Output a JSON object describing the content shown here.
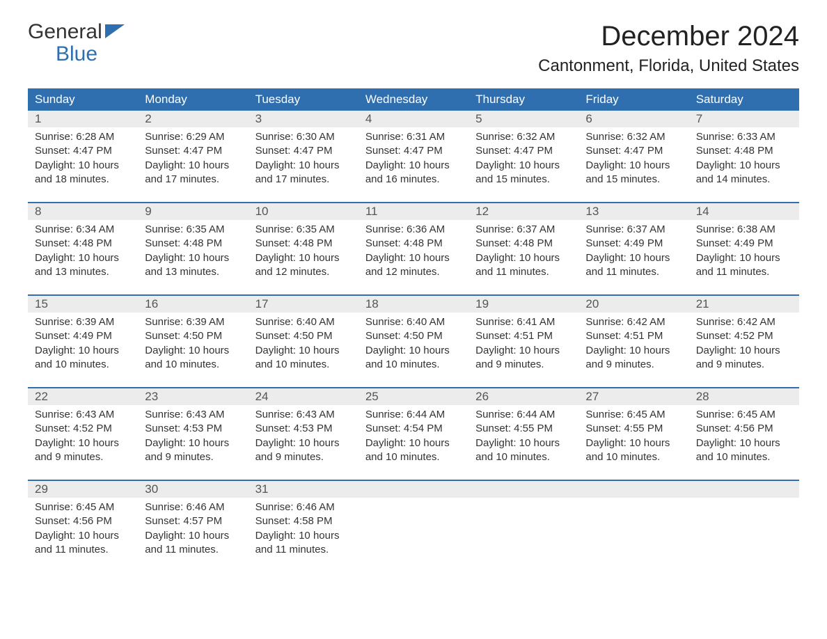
{
  "logo": {
    "line1": "General",
    "line2": "Blue"
  },
  "header": {
    "month_title": "December 2024",
    "location": "Cantonment, Florida, United States"
  },
  "colors": {
    "header_bg": "#2f6fb0",
    "header_text": "#ffffff",
    "daynum_bg": "#ececec",
    "daynum_text": "#555555",
    "body_text": "#333333",
    "week_border": "#2f6fb0",
    "logo_blue": "#2f6fb0",
    "page_bg": "#ffffff"
  },
  "typography": {
    "month_title_fontsize": 40,
    "location_fontsize": 24,
    "dayhead_fontsize": 17,
    "body_fontsize": 15
  },
  "day_names": [
    "Sunday",
    "Monday",
    "Tuesday",
    "Wednesday",
    "Thursday",
    "Friday",
    "Saturday"
  ],
  "weeks": [
    [
      {
        "num": "1",
        "sunrise": "Sunrise: 6:28 AM",
        "sunset": "Sunset: 4:47 PM",
        "dl1": "Daylight: 10 hours",
        "dl2": "and 18 minutes."
      },
      {
        "num": "2",
        "sunrise": "Sunrise: 6:29 AM",
        "sunset": "Sunset: 4:47 PM",
        "dl1": "Daylight: 10 hours",
        "dl2": "and 17 minutes."
      },
      {
        "num": "3",
        "sunrise": "Sunrise: 6:30 AM",
        "sunset": "Sunset: 4:47 PM",
        "dl1": "Daylight: 10 hours",
        "dl2": "and 17 minutes."
      },
      {
        "num": "4",
        "sunrise": "Sunrise: 6:31 AM",
        "sunset": "Sunset: 4:47 PM",
        "dl1": "Daylight: 10 hours",
        "dl2": "and 16 minutes."
      },
      {
        "num": "5",
        "sunrise": "Sunrise: 6:32 AM",
        "sunset": "Sunset: 4:47 PM",
        "dl1": "Daylight: 10 hours",
        "dl2": "and 15 minutes."
      },
      {
        "num": "6",
        "sunrise": "Sunrise: 6:32 AM",
        "sunset": "Sunset: 4:47 PM",
        "dl1": "Daylight: 10 hours",
        "dl2": "and 15 minutes."
      },
      {
        "num": "7",
        "sunrise": "Sunrise: 6:33 AM",
        "sunset": "Sunset: 4:48 PM",
        "dl1": "Daylight: 10 hours",
        "dl2": "and 14 minutes."
      }
    ],
    [
      {
        "num": "8",
        "sunrise": "Sunrise: 6:34 AM",
        "sunset": "Sunset: 4:48 PM",
        "dl1": "Daylight: 10 hours",
        "dl2": "and 13 minutes."
      },
      {
        "num": "9",
        "sunrise": "Sunrise: 6:35 AM",
        "sunset": "Sunset: 4:48 PM",
        "dl1": "Daylight: 10 hours",
        "dl2": "and 13 minutes."
      },
      {
        "num": "10",
        "sunrise": "Sunrise: 6:35 AM",
        "sunset": "Sunset: 4:48 PM",
        "dl1": "Daylight: 10 hours",
        "dl2": "and 12 minutes."
      },
      {
        "num": "11",
        "sunrise": "Sunrise: 6:36 AM",
        "sunset": "Sunset: 4:48 PM",
        "dl1": "Daylight: 10 hours",
        "dl2": "and 12 minutes."
      },
      {
        "num": "12",
        "sunrise": "Sunrise: 6:37 AM",
        "sunset": "Sunset: 4:48 PM",
        "dl1": "Daylight: 10 hours",
        "dl2": "and 11 minutes."
      },
      {
        "num": "13",
        "sunrise": "Sunrise: 6:37 AM",
        "sunset": "Sunset: 4:49 PM",
        "dl1": "Daylight: 10 hours",
        "dl2": "and 11 minutes."
      },
      {
        "num": "14",
        "sunrise": "Sunrise: 6:38 AM",
        "sunset": "Sunset: 4:49 PM",
        "dl1": "Daylight: 10 hours",
        "dl2": "and 11 minutes."
      }
    ],
    [
      {
        "num": "15",
        "sunrise": "Sunrise: 6:39 AM",
        "sunset": "Sunset: 4:49 PM",
        "dl1": "Daylight: 10 hours",
        "dl2": "and 10 minutes."
      },
      {
        "num": "16",
        "sunrise": "Sunrise: 6:39 AM",
        "sunset": "Sunset: 4:50 PM",
        "dl1": "Daylight: 10 hours",
        "dl2": "and 10 minutes."
      },
      {
        "num": "17",
        "sunrise": "Sunrise: 6:40 AM",
        "sunset": "Sunset: 4:50 PM",
        "dl1": "Daylight: 10 hours",
        "dl2": "and 10 minutes."
      },
      {
        "num": "18",
        "sunrise": "Sunrise: 6:40 AM",
        "sunset": "Sunset: 4:50 PM",
        "dl1": "Daylight: 10 hours",
        "dl2": "and 10 minutes."
      },
      {
        "num": "19",
        "sunrise": "Sunrise: 6:41 AM",
        "sunset": "Sunset: 4:51 PM",
        "dl1": "Daylight: 10 hours",
        "dl2": "and 9 minutes."
      },
      {
        "num": "20",
        "sunrise": "Sunrise: 6:42 AM",
        "sunset": "Sunset: 4:51 PM",
        "dl1": "Daylight: 10 hours",
        "dl2": "and 9 minutes."
      },
      {
        "num": "21",
        "sunrise": "Sunrise: 6:42 AM",
        "sunset": "Sunset: 4:52 PM",
        "dl1": "Daylight: 10 hours",
        "dl2": "and 9 minutes."
      }
    ],
    [
      {
        "num": "22",
        "sunrise": "Sunrise: 6:43 AM",
        "sunset": "Sunset: 4:52 PM",
        "dl1": "Daylight: 10 hours",
        "dl2": "and 9 minutes."
      },
      {
        "num": "23",
        "sunrise": "Sunrise: 6:43 AM",
        "sunset": "Sunset: 4:53 PM",
        "dl1": "Daylight: 10 hours",
        "dl2": "and 9 minutes."
      },
      {
        "num": "24",
        "sunrise": "Sunrise: 6:43 AM",
        "sunset": "Sunset: 4:53 PM",
        "dl1": "Daylight: 10 hours",
        "dl2": "and 9 minutes."
      },
      {
        "num": "25",
        "sunrise": "Sunrise: 6:44 AM",
        "sunset": "Sunset: 4:54 PM",
        "dl1": "Daylight: 10 hours",
        "dl2": "and 10 minutes."
      },
      {
        "num": "26",
        "sunrise": "Sunrise: 6:44 AM",
        "sunset": "Sunset: 4:55 PM",
        "dl1": "Daylight: 10 hours",
        "dl2": "and 10 minutes."
      },
      {
        "num": "27",
        "sunrise": "Sunrise: 6:45 AM",
        "sunset": "Sunset: 4:55 PM",
        "dl1": "Daylight: 10 hours",
        "dl2": "and 10 minutes."
      },
      {
        "num": "28",
        "sunrise": "Sunrise: 6:45 AM",
        "sunset": "Sunset: 4:56 PM",
        "dl1": "Daylight: 10 hours",
        "dl2": "and 10 minutes."
      }
    ],
    [
      {
        "num": "29",
        "sunrise": "Sunrise: 6:45 AM",
        "sunset": "Sunset: 4:56 PM",
        "dl1": "Daylight: 10 hours",
        "dl2": "and 11 minutes."
      },
      {
        "num": "30",
        "sunrise": "Sunrise: 6:46 AM",
        "sunset": "Sunset: 4:57 PM",
        "dl1": "Daylight: 10 hours",
        "dl2": "and 11 minutes."
      },
      {
        "num": "31",
        "sunrise": "Sunrise: 6:46 AM",
        "sunset": "Sunset: 4:58 PM",
        "dl1": "Daylight: 10 hours",
        "dl2": "and 11 minutes."
      },
      {
        "num": "",
        "sunrise": "",
        "sunset": "",
        "dl1": "",
        "dl2": ""
      },
      {
        "num": "",
        "sunrise": "",
        "sunset": "",
        "dl1": "",
        "dl2": ""
      },
      {
        "num": "",
        "sunrise": "",
        "sunset": "",
        "dl1": "",
        "dl2": ""
      },
      {
        "num": "",
        "sunrise": "",
        "sunset": "",
        "dl1": "",
        "dl2": ""
      }
    ]
  ]
}
